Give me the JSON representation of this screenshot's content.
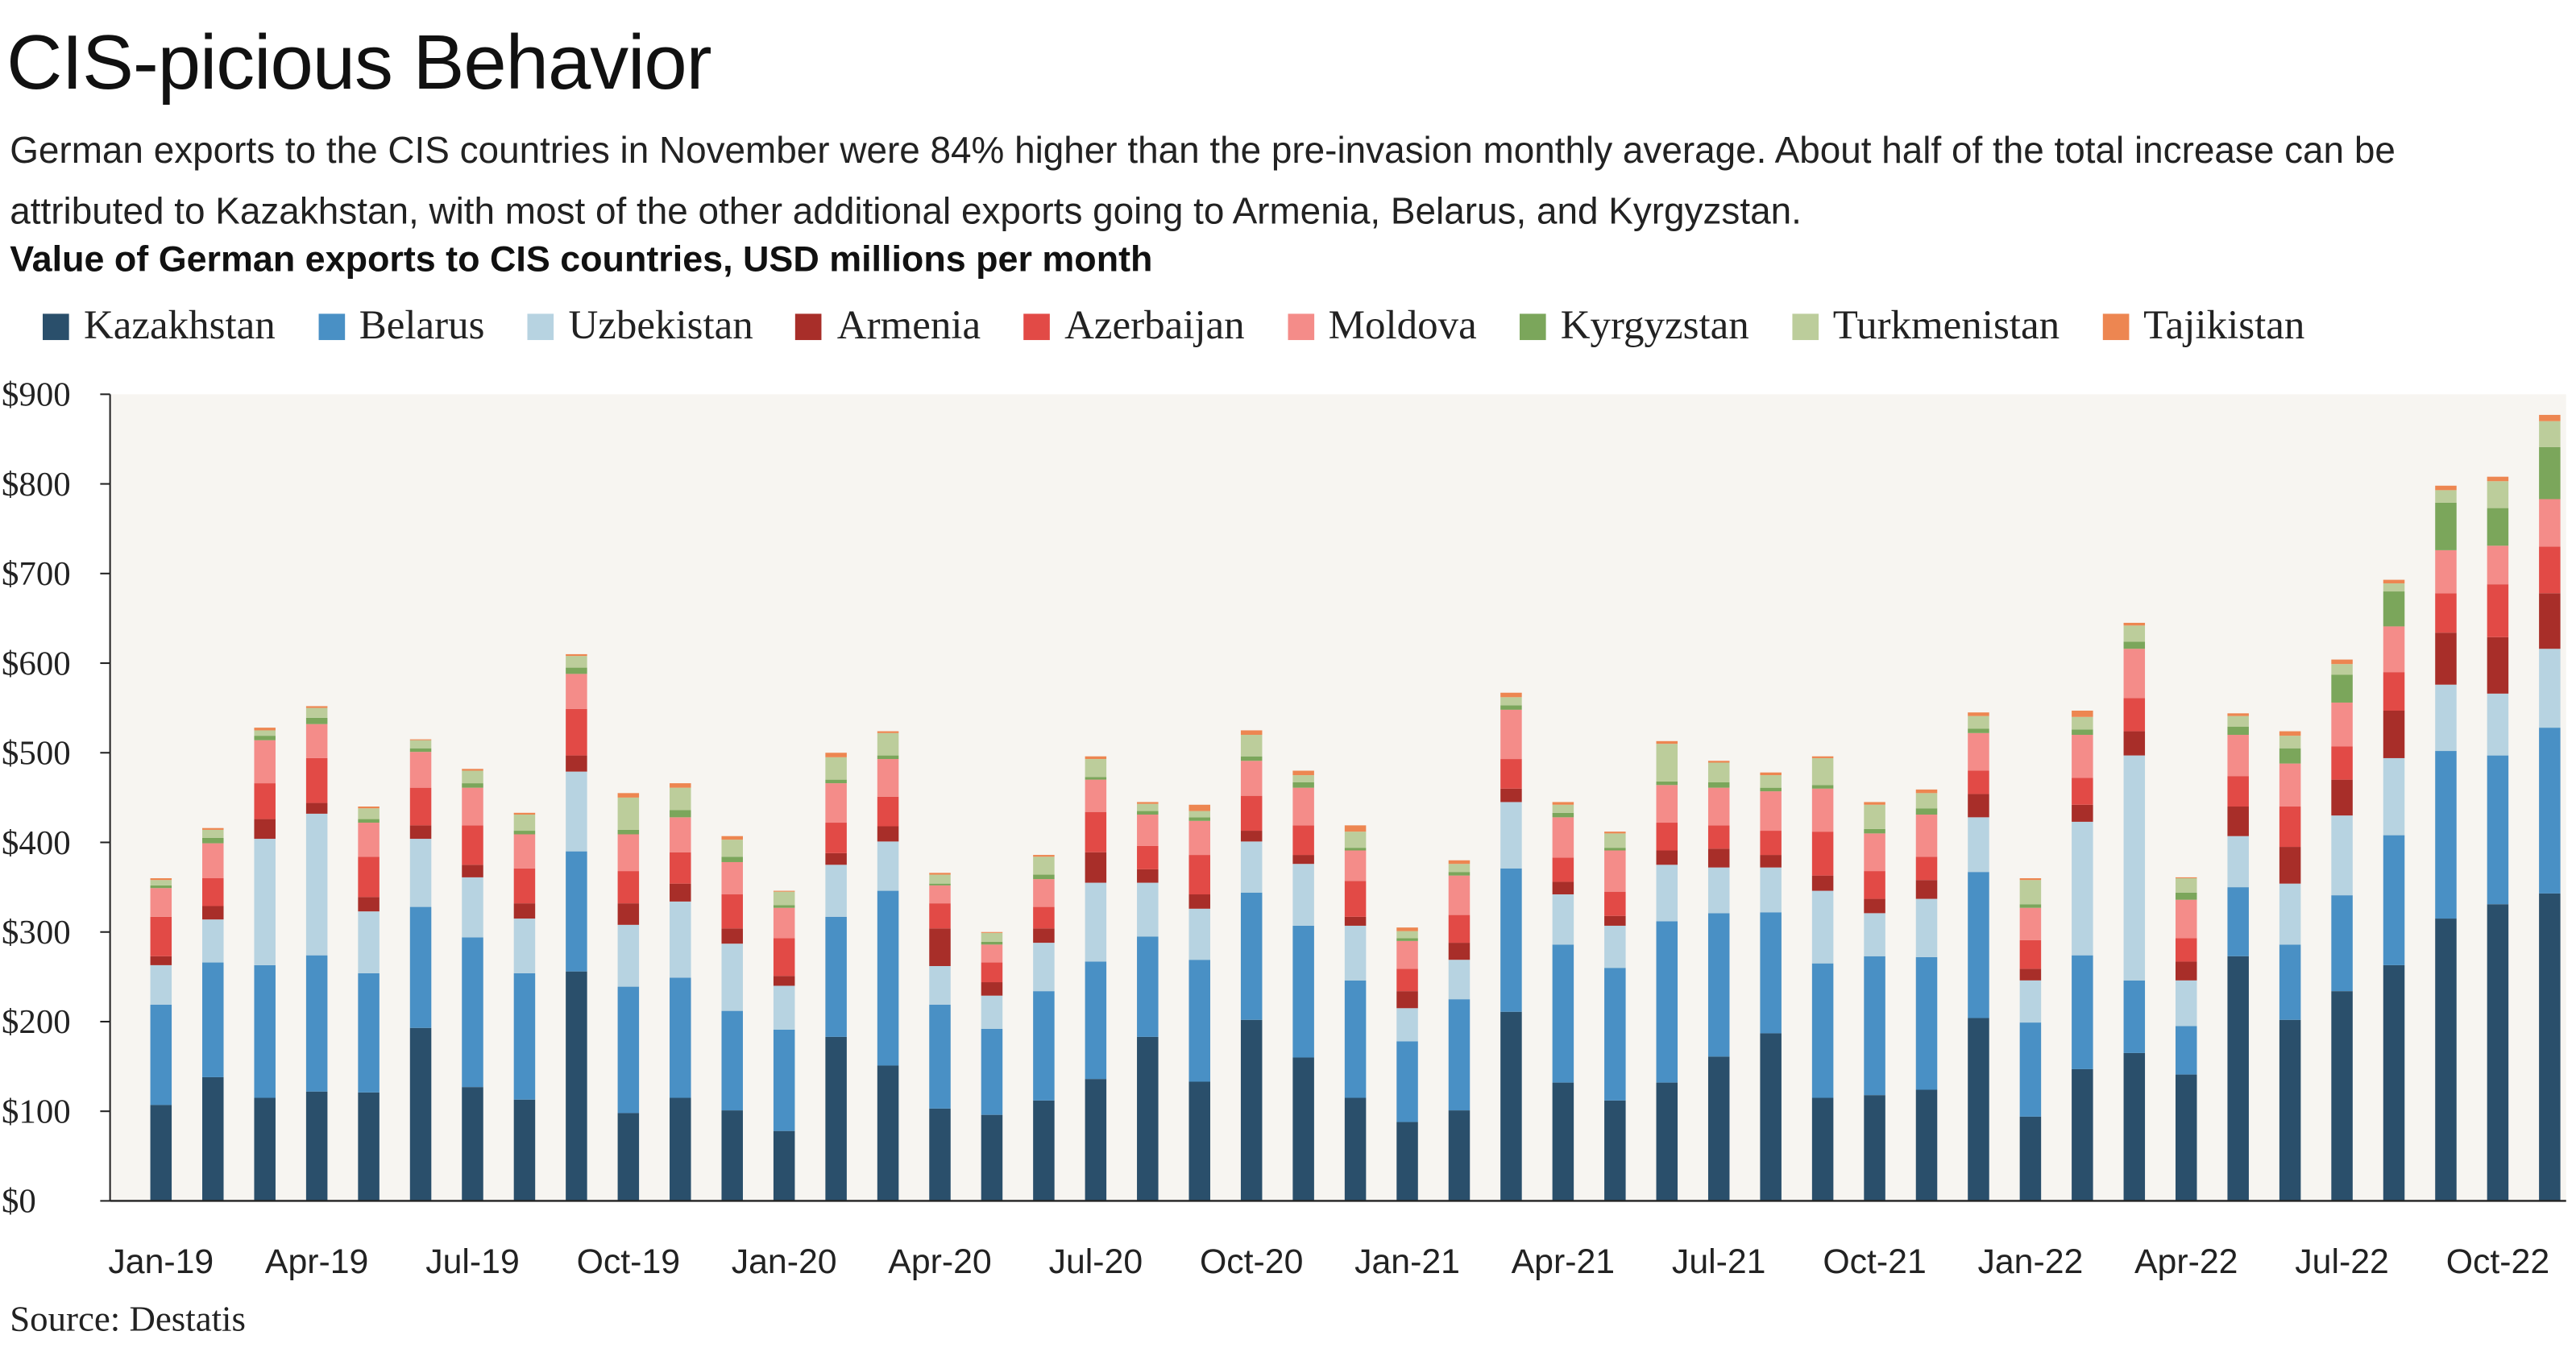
{
  "header": {
    "title": "CIS-picious Behavior",
    "subtitle": "German exports to the CIS countries in November were 84% higher than the pre-invasion monthly average. About half of the total increase can be attributed to Kazakhstan, with most of the other additional exports going to Armenia, Belarus, and Kyrgyzstan.",
    "units": "Value of German exports to CIS countries, USD millions per month"
  },
  "footer": {
    "source": "Source: Destatis"
  },
  "chart_data": {
    "type": "bar",
    "stacked": true,
    "title": "Value of German exports to CIS countries, USD millions per month",
    "ylim": [
      0,
      900
    ],
    "yticks": [
      "$0",
      "$100",
      "$200",
      "$300",
      "$400",
      "$500",
      "$600",
      "$700",
      "$800",
      "$900"
    ],
    "xtick_labels": [
      "Jan-19",
      "Apr-19",
      "Jul-19",
      "Oct-19",
      "Jan-20",
      "Apr-20",
      "Jul-20",
      "Oct-20",
      "Jan-21",
      "Apr-21",
      "Jul-21",
      "Oct-21",
      "Jan-22",
      "Apr-22",
      "Jul-22",
      "Oct-22"
    ],
    "legend_position": "top",
    "grid": false,
    "categories": [
      "Jan-19",
      "Feb-19",
      "Mar-19",
      "Apr-19",
      "May-19",
      "Jun-19",
      "Jul-19",
      "Aug-19",
      "Sep-19",
      "Oct-19",
      "Nov-19",
      "Dec-19",
      "Jan-20",
      "Feb-20",
      "Mar-20",
      "Apr-20",
      "May-20",
      "Jun-20",
      "Jul-20",
      "Aug-20",
      "Sep-20",
      "Oct-20",
      "Nov-20",
      "Dec-20",
      "Jan-21",
      "Feb-21",
      "Mar-21",
      "Apr-21",
      "May-21",
      "Jun-21",
      "Jul-21",
      "Aug-21",
      "Sep-21",
      "Oct-21",
      "Nov-21",
      "Dec-21",
      "Jan-22",
      "Feb-22",
      "Mar-22",
      "Apr-22",
      "May-22",
      "Jun-22",
      "Jul-22",
      "Aug-22",
      "Sep-22",
      "Oct-22",
      "Nov-22"
    ],
    "series": [
      {
        "name": "Kazakhstan",
        "color": "#2a4f6b",
        "values": [
          107,
          138,
          115,
          122,
          121,
          193,
          127,
          113,
          256,
          98,
          115,
          101,
          78,
          183,
          151,
          103,
          96,
          112,
          136,
          183,
          133,
          202,
          160,
          115,
          88,
          101,
          211,
          132,
          112,
          132,
          161,
          187,
          115,
          118,
          124,
          204,
          94,
          147,
          165,
          141,
          273,
          202,
          234,
          263,
          315,
          331,
          343
        ]
      },
      {
        "name": "Belarus",
        "color": "#4990c5",
        "values": [
          112,
          128,
          148,
          152,
          133,
          135,
          167,
          141,
          134,
          141,
          134,
          111,
          113,
          134,
          195,
          116,
          96,
          122,
          131,
          112,
          136,
          142,
          147,
          131,
          90,
          124,
          160,
          154,
          148,
          180,
          160,
          135,
          150,
          155,
          148,
          163,
          105,
          127,
          81,
          54,
          77,
          84,
          107,
          145,
          187,
          166,
          185
        ]
      },
      {
        "name": "Uzbekistan",
        "color": "#b7d3e1",
        "values": [
          44,
          48,
          141,
          158,
          69,
          76,
          67,
          61,
          89,
          69,
          85,
          75,
          49,
          58,
          55,
          43,
          37,
          54,
          88,
          60,
          57,
          57,
          69,
          61,
          37,
          44,
          74,
          56,
          47,
          63,
          51,
          50,
          81,
          48,
          65,
          61,
          47,
          149,
          251,
          51,
          57,
          68,
          89,
          86,
          74,
          69,
          88
        ]
      },
      {
        "name": "Armenia",
        "color": "#a82e29",
        "values": [
          10,
          15,
          22,
          12,
          16,
          15,
          14,
          17,
          18,
          24,
          20,
          17,
          11,
          13,
          17,
          42,
          15,
          16,
          34,
          15,
          16,
          12,
          10,
          10,
          19,
          19,
          15,
          14,
          11,
          16,
          21,
          14,
          17,
          16,
          21,
          26,
          13,
          19,
          27,
          21,
          33,
          41,
          40,
          53,
          58,
          63,
          62
        ]
      },
      {
        "name": "Azerbaijan",
        "color": "#e24a46",
        "values": [
          44,
          31,
          40,
          50,
          45,
          42,
          44,
          39,
          52,
          36,
          35,
          38,
          42,
          34,
          33,
          28,
          22,
          24,
          45,
          26,
          44,
          39,
          33,
          40,
          25,
          31,
          33,
          27,
          27,
          31,
          26,
          27,
          49,
          31,
          26,
          26,
          32,
          30,
          37,
          26,
          34,
          45,
          37,
          43,
          44,
          59,
          52
        ]
      },
      {
        "name": "Moldova",
        "color": "#f48c89",
        "values": [
          32,
          39,
          48,
          38,
          38,
          40,
          42,
          38,
          39,
          41,
          39,
          36,
          34,
          44,
          42,
          20,
          20,
          31,
          36,
          35,
          38,
          39,
          42,
          34,
          31,
          44,
          55,
          45,
          46,
          42,
          42,
          44,
          48,
          42,
          47,
          42,
          36,
          48,
          55,
          43,
          46,
          48,
          49,
          51,
          48,
          43,
          53
        ]
      },
      {
        "name": "Kyrgyzstan",
        "color": "#7ba65b",
        "values": [
          3,
          6,
          5,
          7,
          4,
          4,
          5,
          4,
          7,
          5,
          8,
          6,
          3,
          4,
          4,
          2,
          3,
          5,
          3,
          4,
          4,
          5,
          6,
          3,
          3,
          4,
          5,
          5,
          3,
          4,
          6,
          4,
          4,
          5,
          7,
          5,
          4,
          6,
          8,
          8,
          9,
          17,
          31,
          39,
          53,
          42,
          58
        ]
      },
      {
        "name": "Turkmenistan",
        "color": "#bccd9b",
        "values": [
          6,
          9,
          6,
          11,
          12,
          9,
          14,
          18,
          13,
          36,
          25,
          19,
          15,
          25,
          25,
          10,
          10,
          20,
          20,
          8,
          7,
          24,
          8,
          18,
          8,
          9,
          9,
          9,
          16,
          42,
          22,
          14,
          30,
          27,
          17,
          14,
          27,
          14,
          18,
          16,
          12,
          14,
          12,
          9,
          14,
          30,
          29
        ]
      },
      {
        "name": "Tajikistan",
        "color": "#ed8651",
        "values": [
          2,
          2,
          3,
          2,
          2,
          1,
          2,
          2,
          2,
          5,
          5,
          4,
          1,
          5,
          2,
          2,
          1,
          2,
          3,
          2,
          7,
          5,
          5,
          7,
          4,
          4,
          5,
          3,
          2,
          3,
          2,
          3,
          2,
          3,
          4,
          4,
          2,
          7,
          3,
          1,
          3,
          5,
          5,
          4,
          5,
          5,
          7
        ]
      }
    ]
  },
  "colors": {
    "plot_background": "#f7f5f1",
    "axis": "#222222"
  }
}
